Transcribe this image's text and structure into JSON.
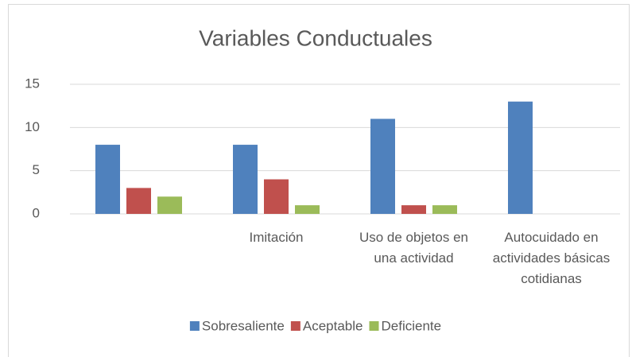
{
  "chart_data": {
    "type": "bar",
    "title": "Variables Conductuales",
    "categories": [
      null,
      "Imitación",
      "Uso de objetos en una actividad",
      "Autocuidado en actividades básicas cotidianas"
    ],
    "series": [
      {
        "name": "Sobresaliente",
        "color": "#4f81bd",
        "values": [
          8,
          8,
          11,
          13
        ]
      },
      {
        "name": "Aceptable",
        "color": "#c0504d",
        "values": [
          3,
          4,
          1,
          0
        ]
      },
      {
        "name": "Deficiente",
        "color": "#9bbb59",
        "values": [
          2,
          1,
          1,
          0
        ]
      }
    ],
    "ylim": [
      0,
      15
    ],
    "yticks": [
      0,
      5,
      10,
      15
    ],
    "grid": true,
    "legend": "bottom"
  }
}
